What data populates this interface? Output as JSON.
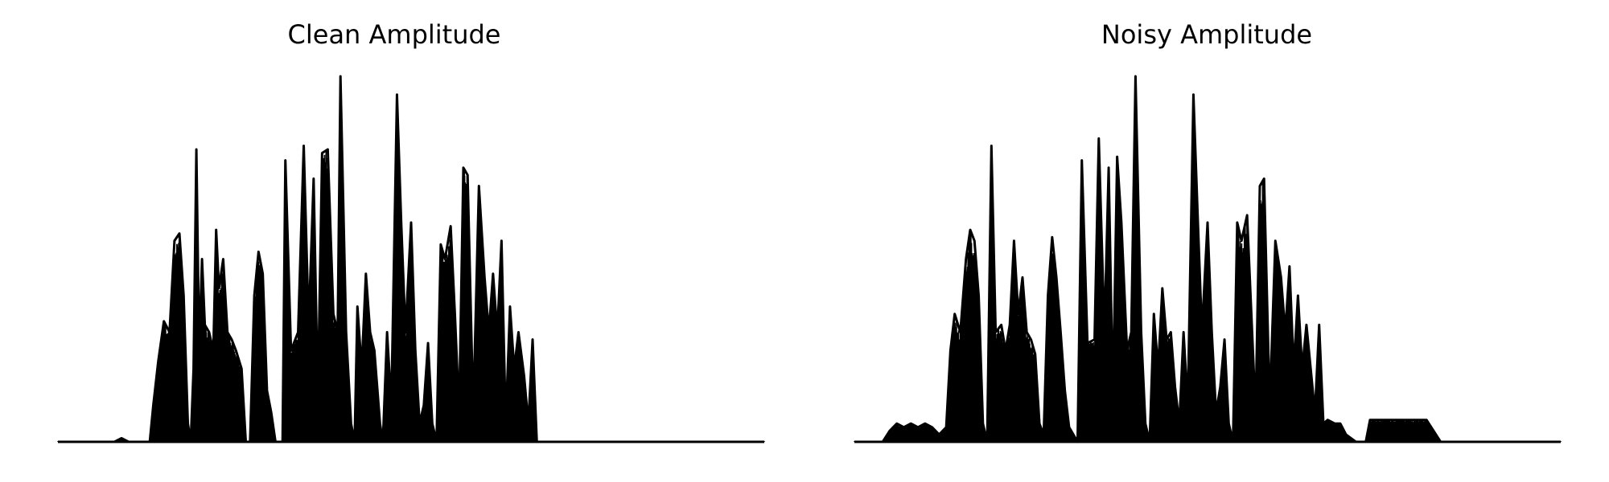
{
  "chart_data": [
    {
      "type": "line",
      "title": "Clean Amplitude",
      "axes_visible": false,
      "line_color": "#000000",
      "x_range": [
        0,
        1
      ],
      "y_range": [
        0,
        1
      ],
      "envelope": [
        [
          0.0,
          0.0
        ],
        [
          0.08,
          0.0
        ],
        [
          0.09,
          0.01
        ],
        [
          0.1,
          0.0
        ],
        [
          0.13,
          0.0
        ],
        [
          0.135,
          0.1
        ],
        [
          0.142,
          0.22
        ],
        [
          0.15,
          0.33
        ],
        [
          0.158,
          0.3
        ],
        [
          0.165,
          0.55
        ],
        [
          0.172,
          0.57
        ],
        [
          0.178,
          0.4
        ],
        [
          0.184,
          0.05
        ],
        [
          0.188,
          0.0
        ],
        [
          0.192,
          0.2
        ],
        [
          0.196,
          0.8
        ],
        [
          0.2,
          0.25
        ],
        [
          0.204,
          0.5
        ],
        [
          0.208,
          0.32
        ],
        [
          0.214,
          0.3
        ],
        [
          0.22,
          0.25
        ],
        [
          0.224,
          0.58
        ],
        [
          0.228,
          0.42
        ],
        [
          0.234,
          0.5
        ],
        [
          0.24,
          0.3
        ],
        [
          0.246,
          0.28
        ],
        [
          0.252,
          0.25
        ],
        [
          0.26,
          0.2
        ],
        [
          0.266,
          0.0
        ],
        [
          0.272,
          0.0
        ],
        [
          0.278,
          0.4
        ],
        [
          0.284,
          0.52
        ],
        [
          0.29,
          0.46
        ],
        [
          0.296,
          0.14
        ],
        [
          0.302,
          0.08
        ],
        [
          0.308,
          0.0
        ],
        [
          0.318,
          0.0
        ],
        [
          0.322,
          0.77
        ],
        [
          0.33,
          0.25
        ],
        [
          0.34,
          0.3
        ],
        [
          0.348,
          0.81
        ],
        [
          0.355,
          0.32
        ],
        [
          0.362,
          0.72
        ],
        [
          0.368,
          0.12
        ],
        [
          0.374,
          0.79
        ],
        [
          0.382,
          0.8
        ],
        [
          0.39,
          0.35
        ],
        [
          0.396,
          0.3
        ],
        [
          0.4,
          1.0
        ],
        [
          0.408,
          0.3
        ],
        [
          0.415,
          0.05
        ],
        [
          0.42,
          0.0
        ],
        [
          0.424,
          0.37
        ],
        [
          0.43,
          0.2
        ],
        [
          0.436,
          0.46
        ],
        [
          0.442,
          0.3
        ],
        [
          0.448,
          0.25
        ],
        [
          0.452,
          0.15
        ],
        [
          0.456,
          0.05
        ],
        [
          0.46,
          0.0
        ],
        [
          0.466,
          0.3
        ],
        [
          0.472,
          0.1
        ],
        [
          0.48,
          0.95
        ],
        [
          0.486,
          0.6
        ],
        [
          0.492,
          0.3
        ],
        [
          0.5,
          0.6
        ],
        [
          0.506,
          0.25
        ],
        [
          0.512,
          0.05
        ],
        [
          0.518,
          0.1
        ],
        [
          0.524,
          0.27
        ],
        [
          0.53,
          0.05
        ],
        [
          0.536,
          0.0
        ],
        [
          0.542,
          0.54
        ],
        [
          0.548,
          0.5
        ],
        [
          0.556,
          0.59
        ],
        [
          0.562,
          0.35
        ],
        [
          0.568,
          0.08
        ],
        [
          0.574,
          0.75
        ],
        [
          0.58,
          0.73
        ],
        [
          0.588,
          0.08
        ],
        [
          0.596,
          0.7
        ],
        [
          0.604,
          0.45
        ],
        [
          0.61,
          0.3
        ],
        [
          0.616,
          0.46
        ],
        [
          0.622,
          0.3
        ],
        [
          0.628,
          0.55
        ],
        [
          0.634,
          0.05
        ],
        [
          0.64,
          0.37
        ],
        [
          0.646,
          0.2
        ],
        [
          0.652,
          0.3
        ],
        [
          0.66,
          0.18
        ],
        [
          0.666,
          0.05
        ],
        [
          0.672,
          0.28
        ],
        [
          0.678,
          0.0
        ],
        [
          0.69,
          0.0
        ],
        [
          0.7,
          0.0
        ],
        [
          1.0,
          0.0
        ]
      ]
    },
    {
      "type": "line",
      "title": "Noisy Amplitude",
      "axes_visible": false,
      "line_color": "#000000",
      "x_range": [
        0,
        1
      ],
      "y_range": [
        0,
        1
      ],
      "envelope": [
        [
          0.0,
          0.0
        ],
        [
          0.04,
          0.0
        ],
        [
          0.05,
          0.03
        ],
        [
          0.06,
          0.05
        ],
        [
          0.07,
          0.04
        ],
        [
          0.08,
          0.05
        ],
        [
          0.09,
          0.04
        ],
        [
          0.1,
          0.05
        ],
        [
          0.11,
          0.04
        ],
        [
          0.12,
          0.02
        ],
        [
          0.13,
          0.04
        ],
        [
          0.136,
          0.25
        ],
        [
          0.142,
          0.35
        ],
        [
          0.15,
          0.3
        ],
        [
          0.158,
          0.5
        ],
        [
          0.164,
          0.58
        ],
        [
          0.17,
          0.55
        ],
        [
          0.176,
          0.4
        ],
        [
          0.182,
          0.05
        ],
        [
          0.188,
          0.0
        ],
        [
          0.194,
          0.81
        ],
        [
          0.2,
          0.3
        ],
        [
          0.208,
          0.32
        ],
        [
          0.214,
          0.25
        ],
        [
          0.22,
          0.32
        ],
        [
          0.226,
          0.55
        ],
        [
          0.232,
          0.35
        ],
        [
          0.238,
          0.45
        ],
        [
          0.244,
          0.3
        ],
        [
          0.25,
          0.28
        ],
        [
          0.256,
          0.24
        ],
        [
          0.262,
          0.05
        ],
        [
          0.268,
          0.02
        ],
        [
          0.274,
          0.4
        ],
        [
          0.28,
          0.56
        ],
        [
          0.286,
          0.45
        ],
        [
          0.292,
          0.3
        ],
        [
          0.298,
          0.14
        ],
        [
          0.304,
          0.04
        ],
        [
          0.316,
          0.0
        ],
        [
          0.322,
          0.77
        ],
        [
          0.33,
          0.27
        ],
        [
          0.34,
          0.28
        ],
        [
          0.346,
          0.83
        ],
        [
          0.354,
          0.3
        ],
        [
          0.36,
          0.75
        ],
        [
          0.366,
          0.12
        ],
        [
          0.372,
          0.78
        ],
        [
          0.378,
          0.6
        ],
        [
          0.386,
          0.25
        ],
        [
          0.392,
          0.3
        ],
        [
          0.398,
          1.0
        ],
        [
          0.406,
          0.3
        ],
        [
          0.412,
          0.05
        ],
        [
          0.418,
          0.0
        ],
        [
          0.424,
          0.35
        ],
        [
          0.43,
          0.2
        ],
        [
          0.436,
          0.42
        ],
        [
          0.442,
          0.28
        ],
        [
          0.448,
          0.3
        ],
        [
          0.454,
          0.15
        ],
        [
          0.46,
          0.05
        ],
        [
          0.466,
          0.3
        ],
        [
          0.472,
          0.1
        ],
        [
          0.48,
          0.95
        ],
        [
          0.486,
          0.62
        ],
        [
          0.492,
          0.3
        ],
        [
          0.5,
          0.6
        ],
        [
          0.506,
          0.3
        ],
        [
          0.512,
          0.08
        ],
        [
          0.518,
          0.15
        ],
        [
          0.524,
          0.28
        ],
        [
          0.53,
          0.05
        ],
        [
          0.536,
          0.0
        ],
        [
          0.542,
          0.6
        ],
        [
          0.548,
          0.55
        ],
        [
          0.556,
          0.62
        ],
        [
          0.562,
          0.35
        ],
        [
          0.568,
          0.08
        ],
        [
          0.574,
          0.7
        ],
        [
          0.58,
          0.72
        ],
        [
          0.588,
          0.1
        ],
        [
          0.596,
          0.55
        ],
        [
          0.604,
          0.45
        ],
        [
          0.61,
          0.3
        ],
        [
          0.616,
          0.48
        ],
        [
          0.622,
          0.2
        ],
        [
          0.628,
          0.4
        ],
        [
          0.634,
          0.2
        ],
        [
          0.64,
          0.32
        ],
        [
          0.646,
          0.2
        ],
        [
          0.652,
          0.08
        ],
        [
          0.658,
          0.32
        ],
        [
          0.664,
          0.05
        ],
        [
          0.67,
          0.06
        ],
        [
          0.68,
          0.05
        ],
        [
          0.688,
          0.05
        ],
        [
          0.696,
          0.02
        ],
        [
          0.71,
          0.0
        ],
        [
          0.724,
          0.0
        ],
        [
          0.73,
          0.06
        ],
        [
          0.8,
          0.06
        ],
        [
          0.81,
          0.06
        ],
        [
          0.83,
          0.0
        ],
        [
          1.0,
          0.0
        ]
      ]
    }
  ]
}
